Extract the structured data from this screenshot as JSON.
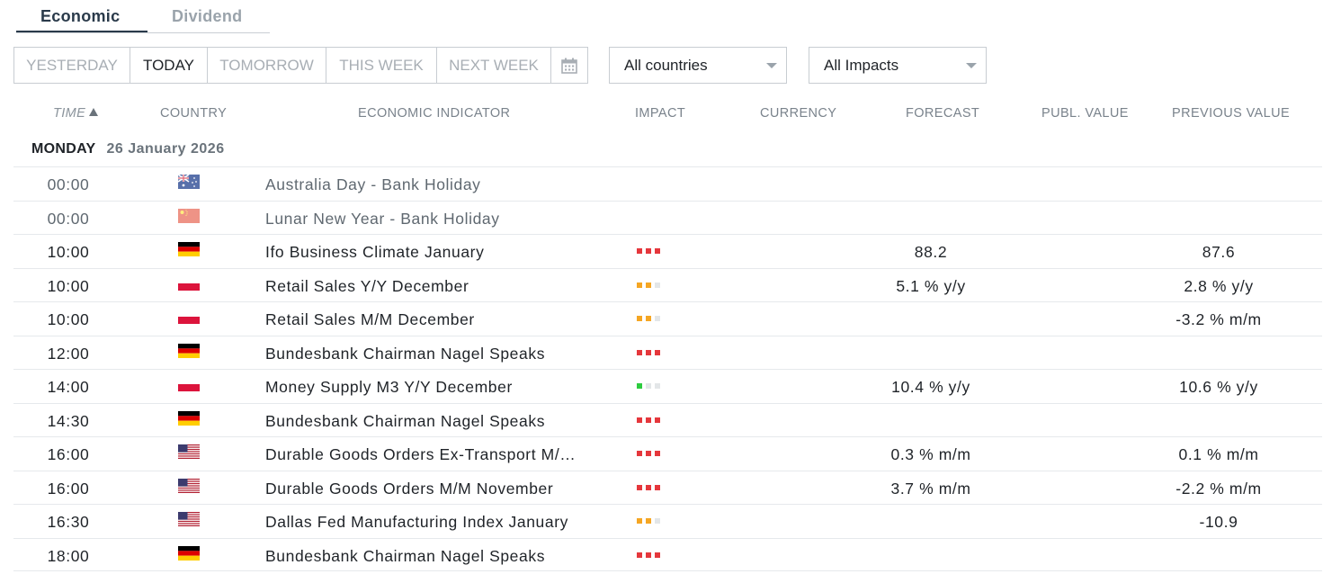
{
  "tabs": [
    {
      "label": "Economic",
      "active": true
    },
    {
      "label": "Dividend",
      "active": false
    }
  ],
  "day_filter": [
    "YESTERDAY",
    "TODAY",
    "TOMORROW",
    "THIS WEEK",
    "NEXT WEEK"
  ],
  "day_filter_active": "TODAY",
  "country_select": "All countries",
  "impact_select": "All Impacts",
  "columns": {
    "time": "TIME",
    "country": "COUNTRY",
    "indicator": "ECONOMIC INDICATOR",
    "impact": "IMPACT",
    "currency": "CURRENCY",
    "forecast": "FORECAST",
    "publ_value": "PUBL. VALUE",
    "previous_value": "PREVIOUS VALUE"
  },
  "day_header": {
    "day": "MONDAY",
    "date": "26 January 2026"
  },
  "impact_colors": {
    "high": "#e5373c",
    "medium": "#f5a623",
    "low": "#2ecc40",
    "empty": "#e3e6e8"
  },
  "rows": [
    {
      "time": "00:00",
      "flag": "australia-flag",
      "indicator": "Australia Day - Bank Holiday",
      "impact": "none",
      "forecast": "",
      "previous": "",
      "holiday": true
    },
    {
      "time": "00:00",
      "flag": "china-flag",
      "indicator": "Lunar New Year - Bank Holiday",
      "impact": "none",
      "forecast": "",
      "previous": "",
      "holiday": true
    },
    {
      "time": "10:00",
      "flag": "germany-flag",
      "indicator": "Ifo Business Climate January",
      "impact": "high",
      "forecast": "88.2",
      "previous": "87.6"
    },
    {
      "time": "10:00",
      "flag": "poland-flag",
      "indicator": "Retail Sales Y/Y December",
      "impact": "medium",
      "forecast": "5.1 % y/y",
      "previous": "2.8 % y/y"
    },
    {
      "time": "10:00",
      "flag": "poland-flag",
      "indicator": "Retail Sales M/M December",
      "impact": "medium",
      "forecast": "",
      "previous": "-3.2 % m/m"
    },
    {
      "time": "12:00",
      "flag": "germany-flag",
      "indicator": "Bundesbank Chairman Nagel Speaks",
      "impact": "high",
      "forecast": "",
      "previous": ""
    },
    {
      "time": "14:00",
      "flag": "poland-flag",
      "indicator": "Money Supply M3 Y/Y December",
      "impact": "low",
      "forecast": "10.4 % y/y",
      "previous": "10.6 % y/y"
    },
    {
      "time": "14:30",
      "flag": "germany-flag",
      "indicator": "Bundesbank Chairman Nagel Speaks",
      "impact": "high",
      "forecast": "",
      "previous": ""
    },
    {
      "time": "16:00",
      "flag": "usa-flag",
      "indicator": "Durable Goods Orders Ex-Transport M/…",
      "impact": "high",
      "forecast": "0.3 % m/m",
      "previous": "0.1 % m/m"
    },
    {
      "time": "16:00",
      "flag": "usa-flag",
      "indicator": "Durable Goods Orders M/M November",
      "impact": "high",
      "forecast": "3.7 % m/m",
      "previous": "-2.2 % m/m"
    },
    {
      "time": "16:30",
      "flag": "usa-flag",
      "indicator": "Dallas Fed Manufacturing Index January",
      "impact": "medium",
      "forecast": "",
      "previous": "-10.9"
    },
    {
      "time": "18:00",
      "flag": "germany-flag",
      "indicator": "Bundesbank Chairman Nagel Speaks",
      "impact": "high",
      "forecast": "",
      "previous": ""
    }
  ]
}
